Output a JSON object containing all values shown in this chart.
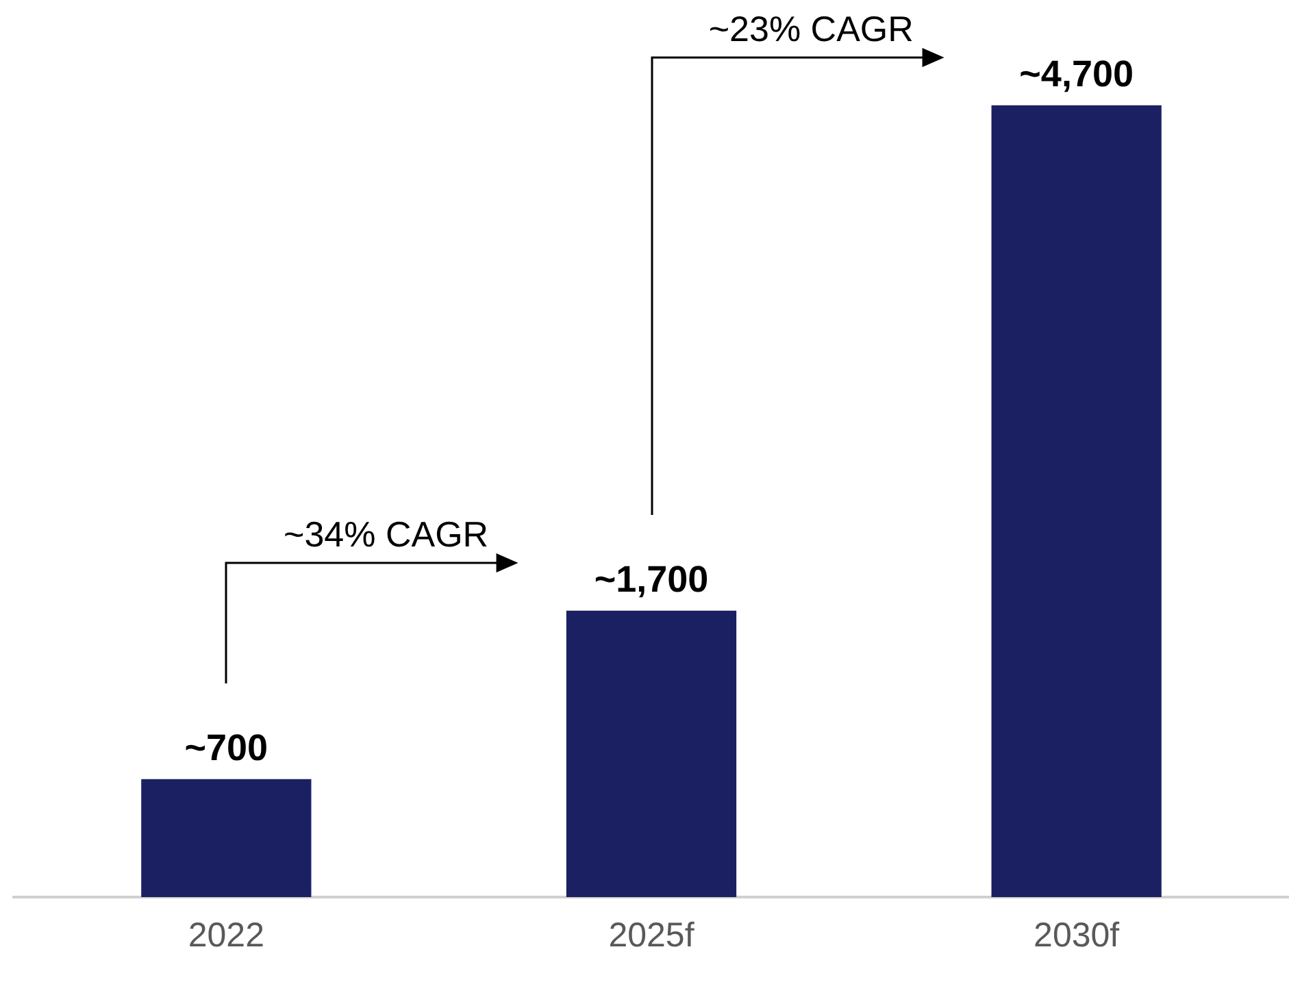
{
  "chart_data": {
    "type": "bar",
    "categories": [
      "2022",
      "2025f",
      "2030f"
    ],
    "values": [
      700,
      1700,
      4700
    ],
    "color": "#1a2062",
    "value_labels": [
      "~700",
      "~1,700",
      "~4,700"
    ],
    "tick_labels": "x",
    "grid": false,
    "legend": false,
    "annotations": [
      "~34% CAGR",
      "~23% CAGR"
    ]
  }
}
